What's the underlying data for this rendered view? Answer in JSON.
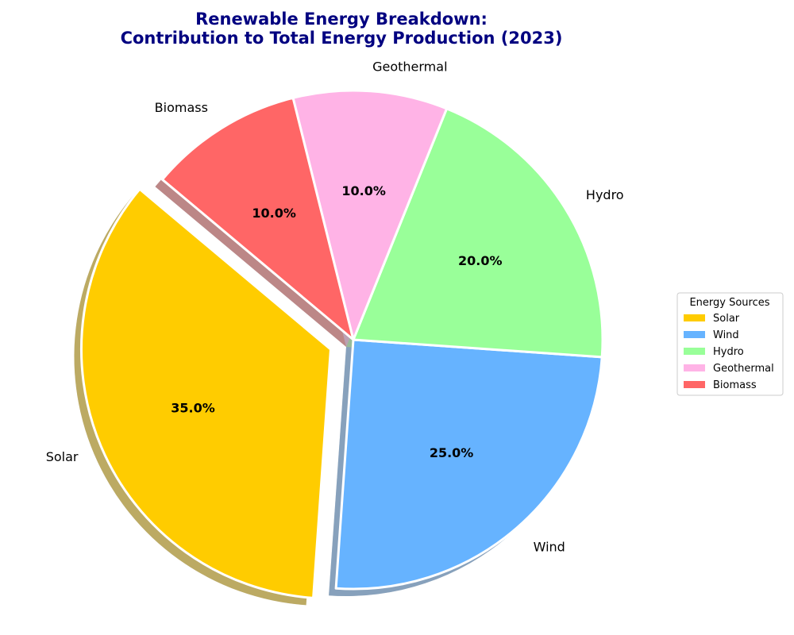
{
  "chart_data": {
    "type": "pie",
    "title": [
      "Renewable Energy Breakdown:",
      "Contribution to Total Energy Production (2023)"
    ],
    "slices": [
      {
        "name": "Solar",
        "value": 35.0,
        "label": "35.0%",
        "color": "#FFCC00",
        "exploded": true
      },
      {
        "name": "Wind",
        "value": 25.0,
        "label": "25.0%",
        "color": "#66B3FF",
        "exploded": false
      },
      {
        "name": "Hydro",
        "value": 20.0,
        "label": "20.0%",
        "color": "#99FF99",
        "exploded": false
      },
      {
        "name": "Geothermal",
        "value": 10.0,
        "label": "10.0%",
        "color": "#FFB3E6",
        "exploded": false
      },
      {
        "name": "Biomass",
        "value": 10.0,
        "label": "10.0%",
        "color": "#FF6666",
        "exploded": false
      }
    ],
    "legend": {
      "title": "Energy Sources",
      "placement": "right",
      "entries": [
        "Solar",
        "Wind",
        "Hydro",
        "Geothermal",
        "Biomass"
      ]
    },
    "shadow": true,
    "title_color": "#000080"
  }
}
